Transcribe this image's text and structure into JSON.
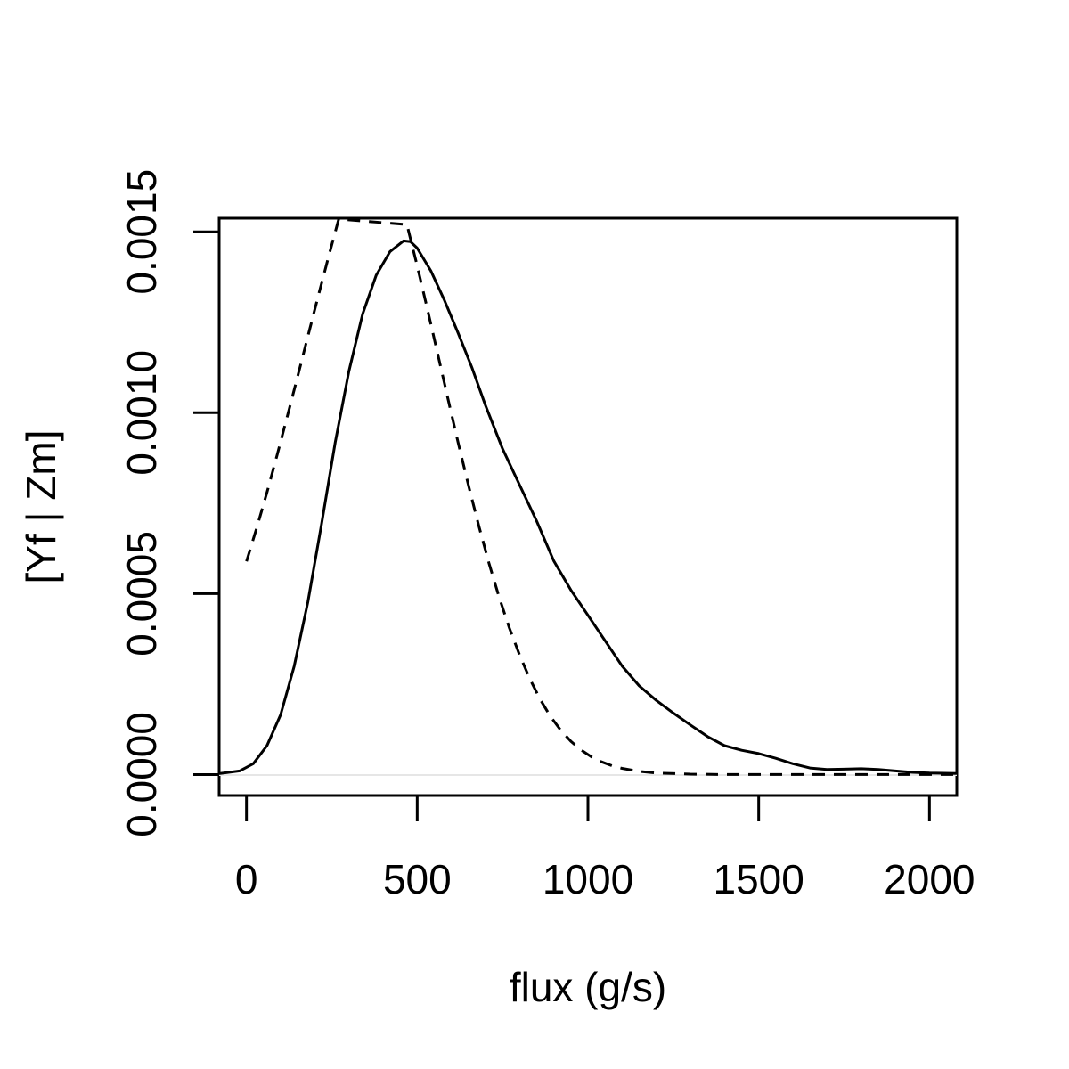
{
  "chart_data": {
    "type": "line",
    "title": "",
    "xlabel": "flux (g/s)",
    "ylabel": "[Yf | Zm]",
    "xlim": [
      -80,
      2080
    ],
    "ylim": [
      -5.8e-05,
      0.0015375
    ],
    "x_ticks": [
      0,
      500,
      1000,
      1500,
      2000
    ],
    "x_tick_labels": [
      "0",
      "500",
      "1000",
      "1500",
      "2000"
    ],
    "y_ticks": [
      0.0,
      0.0005,
      0.001,
      0.0015
    ],
    "y_tick_labels": [
      "0.0000",
      "0.0005",
      "0.0010",
      "0.0015"
    ],
    "grid": false,
    "series": [
      {
        "style": "solid",
        "color": "#000000",
        "x": [
          -80,
          -20,
          20,
          60,
          100,
          140,
          180,
          220,
          260,
          300,
          340,
          380,
          420,
          460,
          480,
          500,
          540,
          580,
          620,
          660,
          700,
          750,
          800,
          850,
          900,
          950,
          1000,
          1050,
          1100,
          1150,
          1200,
          1250,
          1300,
          1350,
          1400,
          1450,
          1500,
          1550,
          1600,
          1650,
          1700,
          1750,
          1800,
          1850,
          1900,
          1950,
          2000,
          2080
        ],
        "y": [
          2.5e-06,
          1e-05,
          3e-05,
          8e-05,
          0.000165,
          0.0003,
          0.000478,
          0.000693,
          0.000918,
          0.001115,
          0.001272,
          0.00138,
          0.001445,
          0.001475,
          0.001473,
          0.001455,
          0.001392,
          0.00131,
          0.00122,
          0.001125,
          0.00102,
          0.0009,
          0.0008,
          0.0007,
          0.00059,
          0.00051,
          0.00044,
          0.00037,
          0.0003,
          0.000245,
          0.000205,
          0.00017,
          0.000137,
          0.000105,
          8e-05,
          6.7e-05,
          5.8e-05,
          4.5e-05,
          3e-05,
          1.8e-05,
          1.4e-05,
          1.5e-05,
          1.6e-05,
          1.4e-05,
          1e-05,
          6e-06,
          4e-06,
          3e-06
        ]
      },
      {
        "style": "dashed",
        "color": "#000000",
        "x": [
          0,
          30,
          60,
          90,
          120,
          150,
          180,
          210,
          240,
          270,
          470,
          500,
          530,
          560,
          590,
          620,
          650,
          680,
          710,
          740,
          770,
          800,
          830,
          860,
          890,
          920,
          950,
          980,
          1010,
          1040,
          1070,
          1100,
          1150,
          1200,
          1300,
          1400,
          1500,
          1600,
          1700,
          1800,
          1900,
          2000,
          2080
        ],
        "y": [
          0.000589,
          0.000682,
          0.00078,
          0.000884,
          0.000992,
          0.001101,
          0.001212,
          0.001322,
          0.00143,
          0.001535,
          0.00152,
          0.001406,
          0.001286,
          0.001163,
          0.001039,
          0.000917,
          0.0008,
          0.000689,
          0.000585,
          0.00049,
          0.000405,
          0.00033,
          0.000264,
          0.000208,
          0.000161,
          0.000123,
          9.2e-05,
          6.78e-05,
          4.92e-05,
          3.51e-05,
          2.46e-05,
          1.7e-05,
          8.7e-06,
          4.3e-06,
          1e-06,
          2e-07,
          0.0,
          0.0,
          0.0,
          0.0,
          0.0,
          0.0,
          0.0
        ]
      }
    ]
  }
}
